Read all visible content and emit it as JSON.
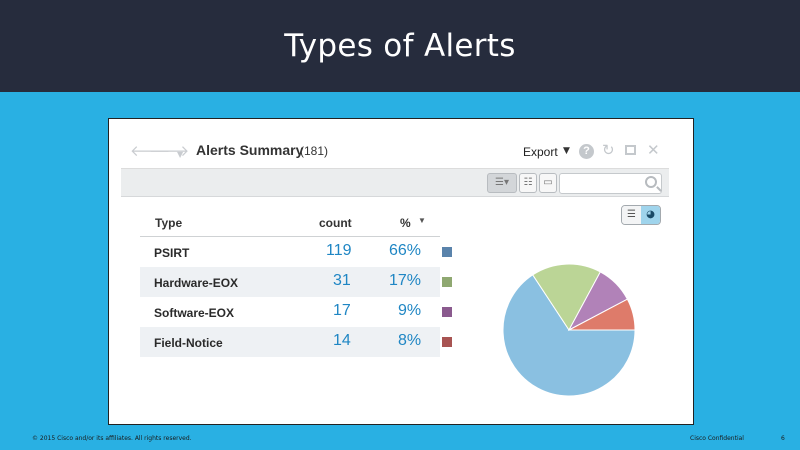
{
  "slide": {
    "title": "Types of Alerts",
    "footer_left": "© 2015 Cisco and/or its affiliates. All rights reserved.",
    "footer_right": "Cisco Confidential",
    "page_number": "6"
  },
  "panel": {
    "title": "Alerts Summary",
    "count": "(181)",
    "export_label": "Export",
    "help_icon": "question-circle-icon",
    "refresh_icon": "refresh-icon",
    "maximize_icon": "maximize-icon",
    "close_icon": "close-icon",
    "search": {
      "value": "",
      "placeholder": ""
    }
  },
  "grid": {
    "columns": [
      "Type",
      "count",
      "%"
    ],
    "rows": [
      {
        "type": "PSIRT",
        "count": "119",
        "pct": "66%",
        "color": "#5a83ab"
      },
      {
        "type": "Hardware-EOX",
        "count": "31",
        "pct": "17%",
        "color": "#8fa871"
      },
      {
        "type": "Software-EOX",
        "count": "17",
        "pct": "9%",
        "color": "#8a5a8e"
      },
      {
        "type": "Field-Notice",
        "count": "14",
        "pct": "8%",
        "color": "#a85452"
      }
    ]
  },
  "chart_data": {
    "type": "pie",
    "categories": [
      "PSIRT",
      "Hardware-EOX",
      "Software-EOX",
      "Field-Notice"
    ],
    "values": [
      119,
      31,
      17,
      14
    ],
    "colors": [
      "#8ac0e1",
      "#bbd596",
      "#b182b8",
      "#de7b6a"
    ]
  }
}
